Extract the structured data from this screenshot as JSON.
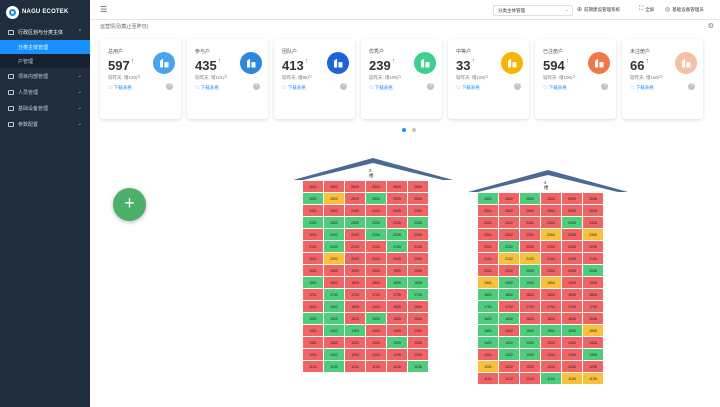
{
  "logo": {
    "text": "NAGU ECOTEK"
  },
  "sidebar": {
    "items": [
      {
        "label": "行政区划与分类主体",
        "open": true,
        "children": [
          {
            "label": "分类主体管理",
            "active": true
          },
          {
            "label": "户管理",
            "active": false
          }
        ]
      },
      {
        "label": "项目内部管理"
      },
      {
        "label": "人员管理"
      },
      {
        "label": "基础设备管理"
      },
      {
        "label": "参数配置"
      }
    ]
  },
  "topbar": {
    "select_value": "分类主体管理",
    "links": [
      "前期建设管理系统",
      "全屏",
      "基础设备管理员"
    ]
  },
  "main": {
    "title": "运营情况(截止至昨日)"
  },
  "stats": [
    {
      "label": "总用户",
      "value": "597",
      "compare": "较昨天: 增120户",
      "download": "下载表格",
      "color": "#4aa3f0"
    },
    {
      "label": "参与户",
      "value": "435",
      "compare": "较昨天: 增101户",
      "download": "下载表格",
      "color": "#2e86de"
    },
    {
      "label": "团队户",
      "value": "413",
      "compare": "较昨天: 增98户",
      "download": "下载表格",
      "color": "#1e64d6"
    },
    {
      "label": "优秀户",
      "value": "239",
      "compare": "较昨天: 增100户",
      "download": "下载表格",
      "color": "#3ecf8e"
    },
    {
      "label": "中等户",
      "value": "33",
      "compare": "较昨天: 增100户",
      "download": "下载表格",
      "color": "#f7b500"
    },
    {
      "label": "已注册户",
      "value": "594",
      "compare": "较昨天: 增100户",
      "download": "下载表格",
      "color": "#f07846"
    },
    {
      "label": "未注册户",
      "value": "66",
      "compare": "较昨天: 增100户",
      "download": "下载表格",
      "color": "#f5c0a6"
    }
  ],
  "buildings": [
    {
      "name": "3楼",
      "rows": [
        {
          "floor": 26,
          "c": "rrrrrr"
        },
        {
          "floor": 25,
          "c": "gyrgrr"
        },
        {
          "floor": 24,
          "c": "rrrrrr"
        },
        {
          "floor": 23,
          "c": "ggggrg"
        },
        {
          "floor": 22,
          "c": "rgrggr"
        },
        {
          "floor": 21,
          "c": "rgrrgr"
        },
        {
          "floor": 20,
          "c": "ryrrrr"
        },
        {
          "floor": 19,
          "c": "rrrrrr"
        },
        {
          "floor": 18,
          "c": "grrrgg"
        },
        {
          "floor": 17,
          "c": "rgrrrg"
        },
        {
          "floor": 16,
          "c": "rgrrrr"
        },
        {
          "floor": 15,
          "c": "ggrgrr"
        },
        {
          "floor": 14,
          "c": "rggrrr"
        },
        {
          "floor": 13,
          "c": "rrrrgr"
        },
        {
          "floor": 12,
          "c": "rgrrrr"
        },
        {
          "floor": 11,
          "c": "rgrrrg"
        }
      ]
    },
    {
      "name": "4楼",
      "rows": [
        {
          "floor": 26,
          "c": "grgrrr"
        },
        {
          "floor": 25,
          "c": "rrrrrr"
        },
        {
          "floor": 24,
          "c": "rrrrgr"
        },
        {
          "floor": 23,
          "c": "rrryry"
        },
        {
          "floor": 22,
          "c": "rgrrrr"
        },
        {
          "floor": 21,
          "c": "ryyrrr"
        },
        {
          "floor": 20,
          "c": "rrgrrg"
        },
        {
          "floor": 19,
          "c": "yggyrr"
        },
        {
          "floor": 18,
          "c": "ggrrrr"
        },
        {
          "floor": 17,
          "c": "grrrrr"
        },
        {
          "floor": 16,
          "c": "ggrrrr"
        },
        {
          "floor": 15,
          "c": "grgggy"
        },
        {
          "floor": 14,
          "c": "gggrrr"
        },
        {
          "floor": 13,
          "c": "rggrrg"
        },
        {
          "floor": 12,
          "c": "yrrrrr"
        },
        {
          "floor": 11,
          "c": "rrrgyy"
        }
      ]
    }
  ]
}
